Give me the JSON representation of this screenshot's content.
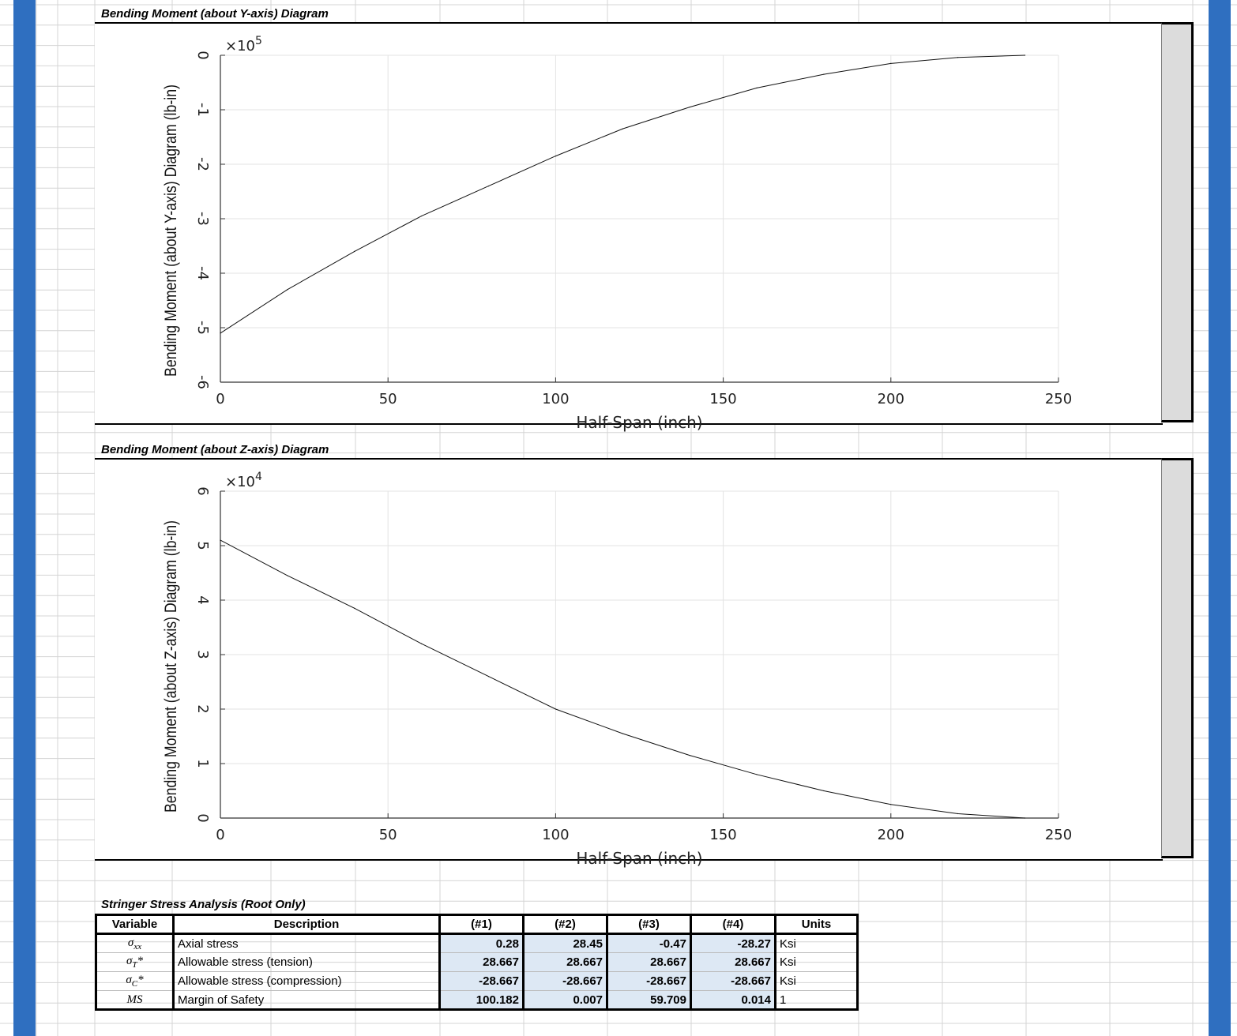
{
  "colors": {
    "sheet_blue": "#2f6fc0",
    "gridline": "#d4d4d4",
    "value_fill": "#dde8f4"
  },
  "chart1_title": "Bending Moment (about Y-axis) Diagram",
  "chart2_title": "Bending Moment (about Z-axis) Diagram",
  "table": {
    "title": "Stringer Stress Analysis (Root Only)",
    "headers": [
      "Variable",
      "Description",
      "(#1)",
      "(#2)",
      "(#3)",
      "(#4)",
      "Units"
    ],
    "rows": [
      {
        "variable": "σxx",
        "description": "Axial stress",
        "values": [
          "0.28",
          "28.45",
          "-0.47",
          "-28.27"
        ],
        "unit": "Ksi"
      },
      {
        "variable": "σT*",
        "description": "Allowable stress (tension)",
        "values": [
          "28.667",
          "28.667",
          "28.667",
          "28.667"
        ],
        "unit": "Ksi"
      },
      {
        "variable": "σC*",
        "description": "Allowable stress (compression)",
        "values": [
          "-28.667",
          "-28.667",
          "-28.667",
          "-28.667"
        ],
        "unit": "Ksi"
      },
      {
        "variable": "MS",
        "description": "Margin of Safety",
        "values": [
          "100.182",
          "0.007",
          "59.709",
          "0.014"
        ],
        "unit": "1"
      }
    ]
  },
  "chart_data": [
    {
      "type": "line",
      "xlabel": "Half-Span (inch)",
      "ylabel": "Bending Moment (about Y-axis) Diagram (lb-in)",
      "y_multiplier": "×10^5",
      "xlim": [
        0,
        250
      ],
      "ylim": [
        -6,
        0
      ],
      "xticks": [
        "0",
        "50",
        "100",
        "150",
        "200",
        "250"
      ],
      "yticks": [
        "0",
        "-1",
        "-2",
        "-3",
        "-4",
        "-5",
        "-6"
      ],
      "grid": true,
      "series": [
        {
          "x": [
            0,
            20,
            40,
            60,
            80,
            100,
            120,
            140,
            160,
            180,
            200,
            220,
            240
          ],
          "y": [
            -5.1,
            -4.3,
            -3.6,
            -2.95,
            -2.4,
            -1.85,
            -1.35,
            -0.95,
            -0.6,
            -0.35,
            -0.15,
            -0.04,
            0
          ]
        }
      ]
    },
    {
      "type": "line",
      "xlabel": "Half-Span (inch)",
      "ylabel": "Bending Moment (about Z-axis) Diagram (lb-in)",
      "y_multiplier": "×10^4",
      "xlim": [
        0,
        250
      ],
      "ylim": [
        0,
        6
      ],
      "xticks": [
        "0",
        "50",
        "100",
        "150",
        "200",
        "250"
      ],
      "yticks": [
        "6",
        "5",
        "4",
        "3",
        "2",
        "1",
        "0"
      ],
      "grid": true,
      "series": [
        {
          "x": [
            0,
            20,
            40,
            60,
            80,
            100,
            120,
            140,
            160,
            180,
            200,
            220,
            240
          ],
          "y": [
            5.1,
            4.45,
            3.85,
            3.2,
            2.6,
            2.0,
            1.55,
            1.15,
            0.8,
            0.5,
            0.25,
            0.08,
            0
          ]
        }
      ]
    }
  ]
}
